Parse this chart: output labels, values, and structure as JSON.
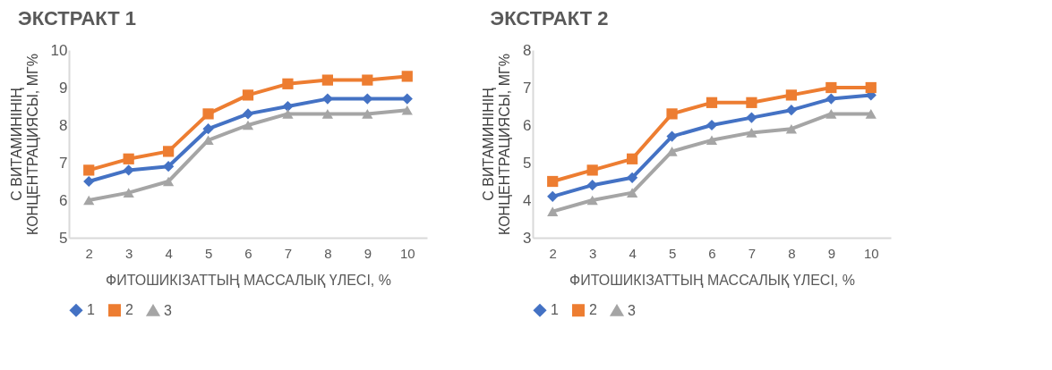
{
  "chart_data": [
    {
      "type": "line",
      "title": "ЭКСТРАКТ 1",
      "xlabel": "ФИТОШИКІЗАТТЫҢ МАССАЛЫҚ ҮЛЕСІ, %",
      "ylabel": "С ВИТАМИНІНІҢ КОНЦЕНТРАЦИЯСЫ, МГ%",
      "categories": [
        "2",
        "3",
        "4",
        "5",
        "6",
        "7",
        "8",
        "9",
        "10"
      ],
      "ylim": [
        5,
        10
      ],
      "yticks": [
        5,
        6,
        7,
        8,
        9,
        10
      ],
      "grid": false,
      "legend": "bottom",
      "line_style": "solid",
      "series": [
        {
          "name": "1",
          "color": "#4472c4",
          "marker": "diamond",
          "values": [
            6.5,
            6.8,
            6.9,
            7.9,
            8.3,
            8.5,
            8.7,
            8.7,
            8.7
          ]
        },
        {
          "name": "2",
          "color": "#ed7d31",
          "marker": "square",
          "values": [
            6.8,
            7.1,
            7.3,
            8.3,
            8.8,
            9.1,
            9.2,
            9.2,
            9.3
          ]
        },
        {
          "name": "3",
          "color": "#a5a5a5",
          "marker": "triangle",
          "values": [
            6.0,
            6.2,
            6.5,
            7.6,
            8.0,
            8.3,
            8.3,
            8.3,
            8.4
          ]
        }
      ]
    },
    {
      "type": "line",
      "title": "ЭКСТРАКТ 2",
      "xlabel": "ФИТОШИКІЗАТТЫҢ МАССАЛЫҚ ҮЛЕСІ, %",
      "ylabel": "С ВИТАМИНІНІҢ КОНЦЕНТРАЦИЯСЫ, МГ%",
      "categories": [
        "2",
        "3",
        "4",
        "5",
        "6",
        "7",
        "8",
        "9",
        "10"
      ],
      "ylim": [
        3,
        8
      ],
      "yticks": [
        3,
        4,
        5,
        6,
        7,
        8
      ],
      "grid": false,
      "legend": "bottom",
      "line_style": "solid",
      "series": [
        {
          "name": "1",
          "color": "#4472c4",
          "marker": "diamond",
          "values": [
            4.1,
            4.4,
            4.6,
            5.7,
            6.0,
            6.2,
            6.4,
            6.7,
            6.8
          ]
        },
        {
          "name": "2",
          "color": "#ed7d31",
          "marker": "square",
          "values": [
            4.5,
            4.8,
            5.1,
            6.3,
            6.6,
            6.6,
            6.8,
            7.0,
            7.0
          ]
        },
        {
          "name": "3",
          "color": "#a5a5a5",
          "marker": "triangle",
          "values": [
            3.7,
            4.0,
            4.2,
            5.3,
            5.6,
            5.8,
            5.9,
            6.3,
            6.3
          ]
        }
      ]
    }
  ]
}
